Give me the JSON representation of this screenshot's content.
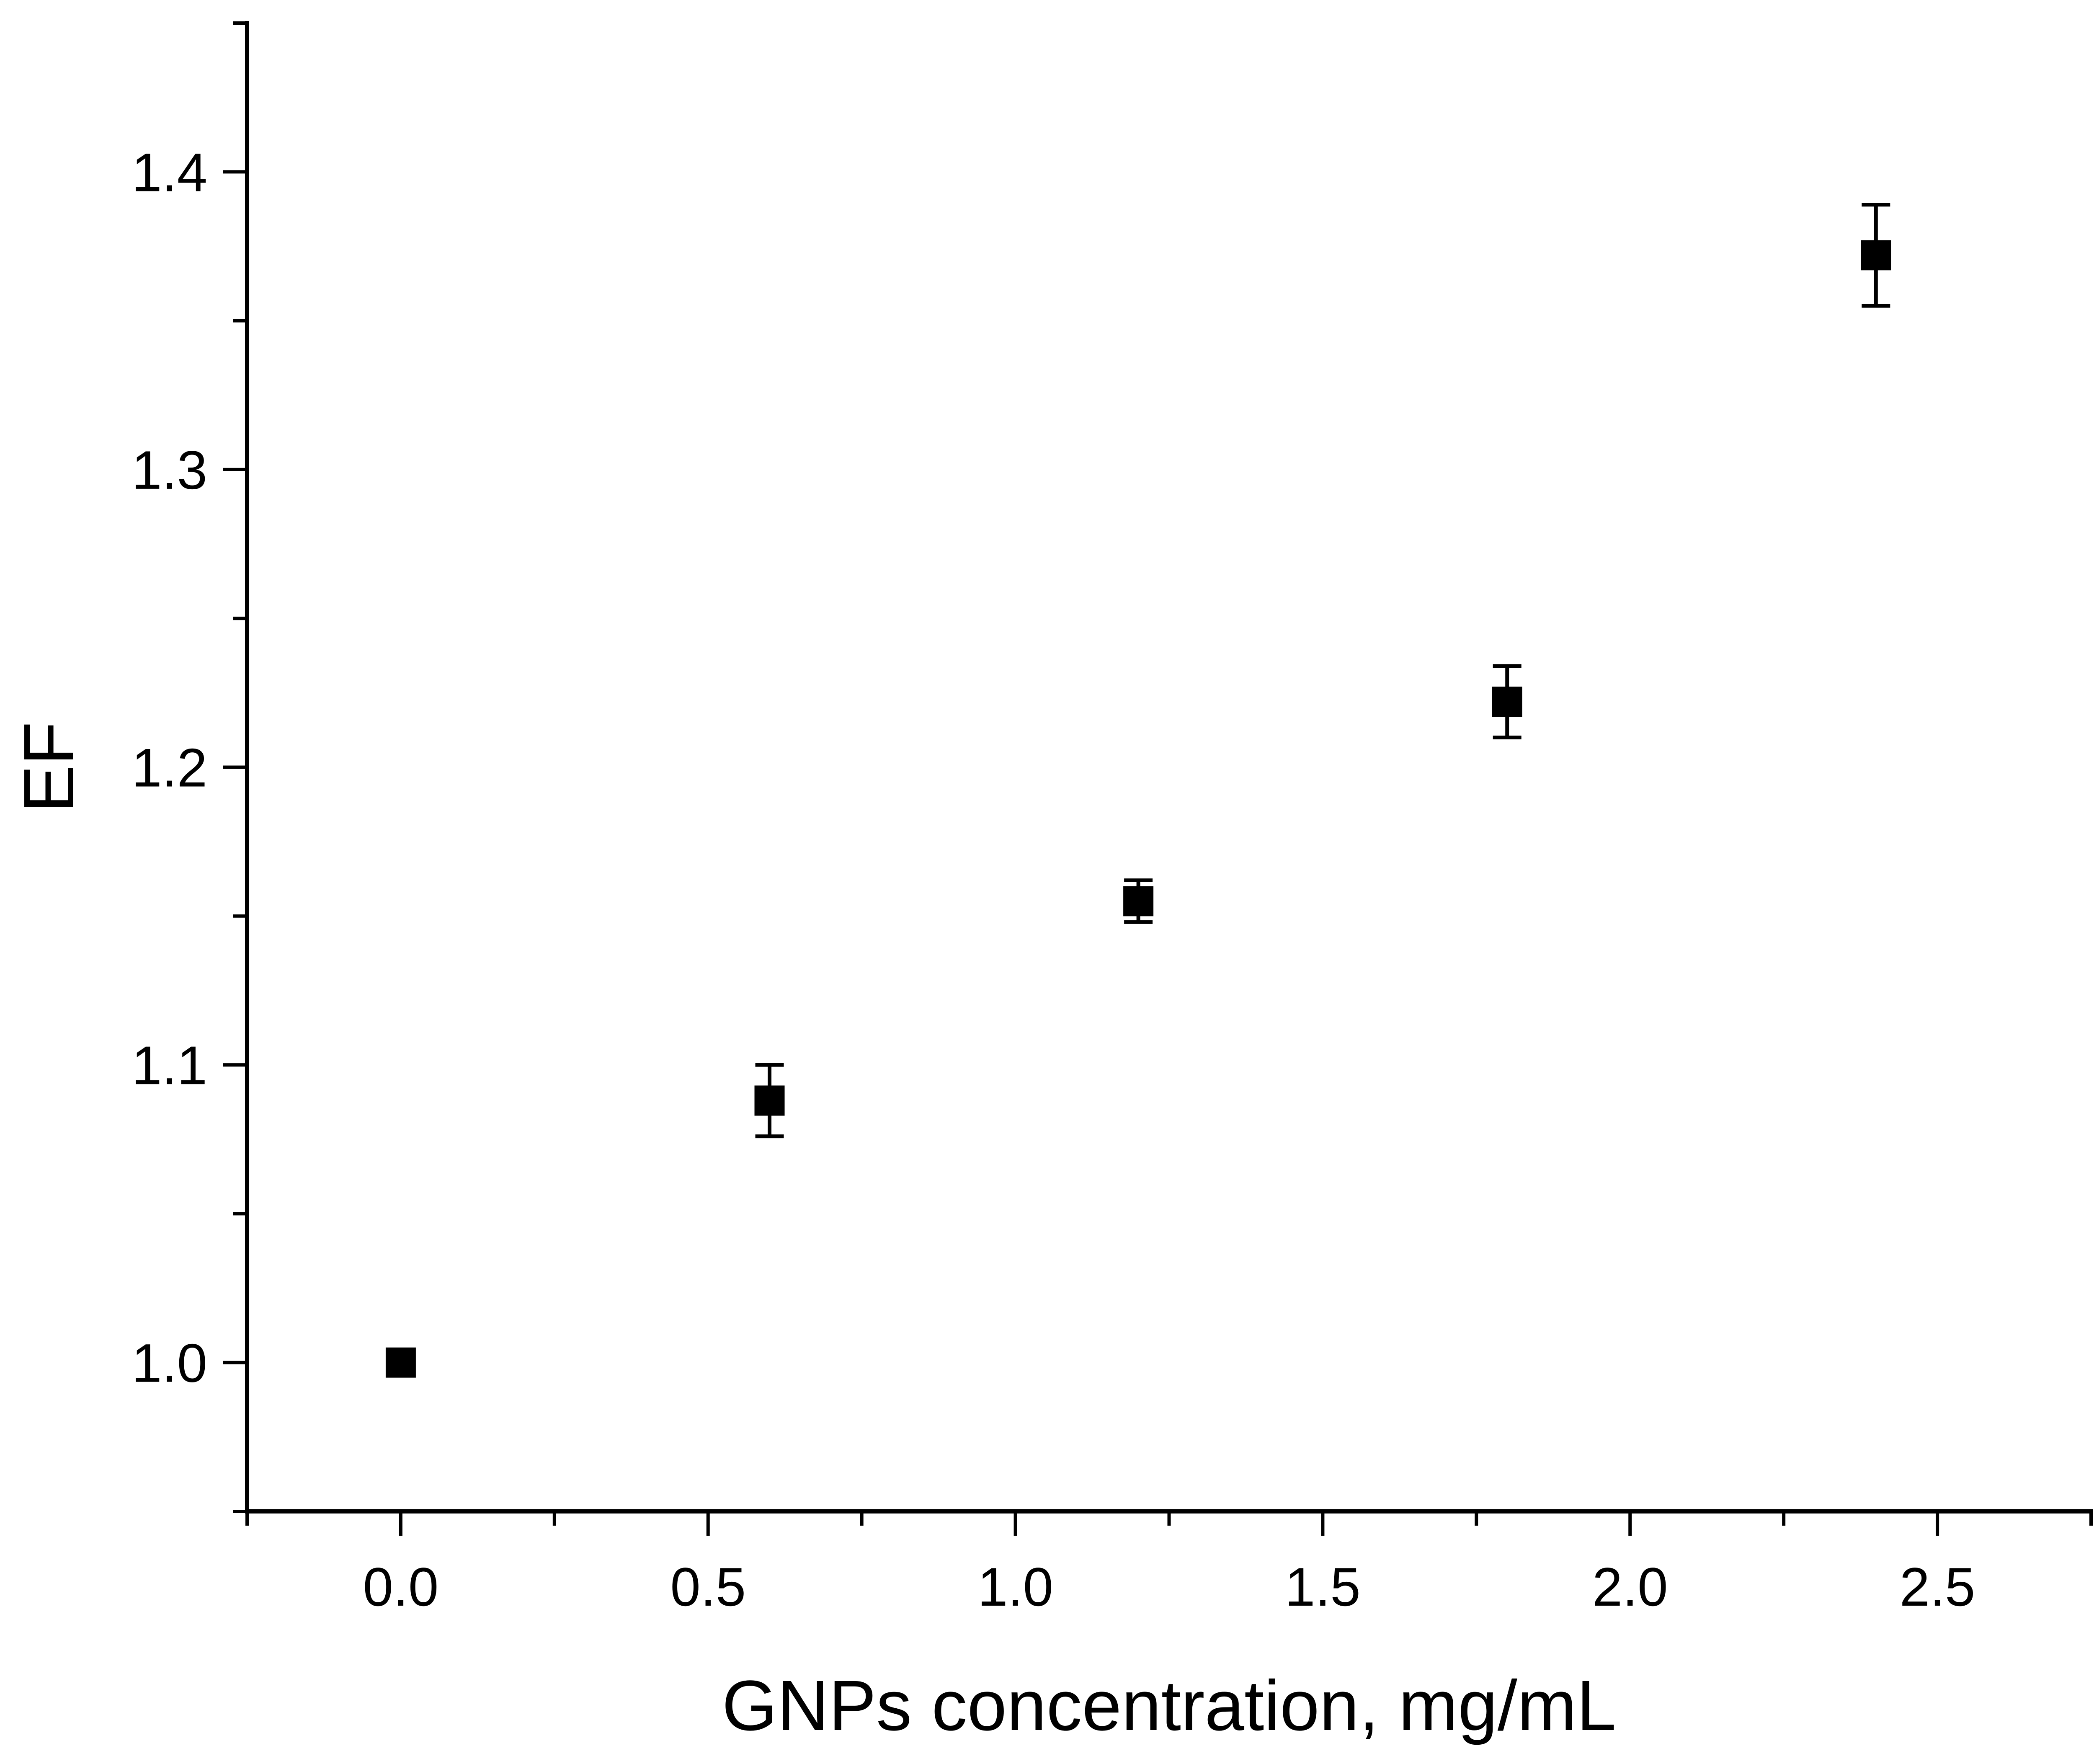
{
  "chart_data": {
    "type": "scatter",
    "title": "",
    "xlabel": "GNPs concentration, mg/mL",
    "ylabel": "EF",
    "xlim": [
      -0.25,
      2.75
    ],
    "ylim": [
      0.95,
      1.45
    ],
    "x_ticks": [
      "0.0",
      "0.5",
      "1.0",
      "1.5",
      "2.0",
      "2.5"
    ],
    "y_ticks": [
      "1.0",
      "1.1",
      "1.2",
      "1.3",
      "1.4"
    ],
    "x_minor_step": 0.25,
    "y_minor_step": 0.05,
    "grid": false,
    "legend": "none",
    "marker": "square",
    "marker_color": "#000000",
    "series": [
      {
        "x": [
          0.0,
          0.6,
          1.2,
          1.8,
          2.4
        ],
        "y": [
          1.0,
          1.088,
          1.155,
          1.222,
          1.372
        ],
        "error": [
          0.004,
          0.012,
          0.007,
          0.012,
          0.017
        ]
      }
    ]
  }
}
